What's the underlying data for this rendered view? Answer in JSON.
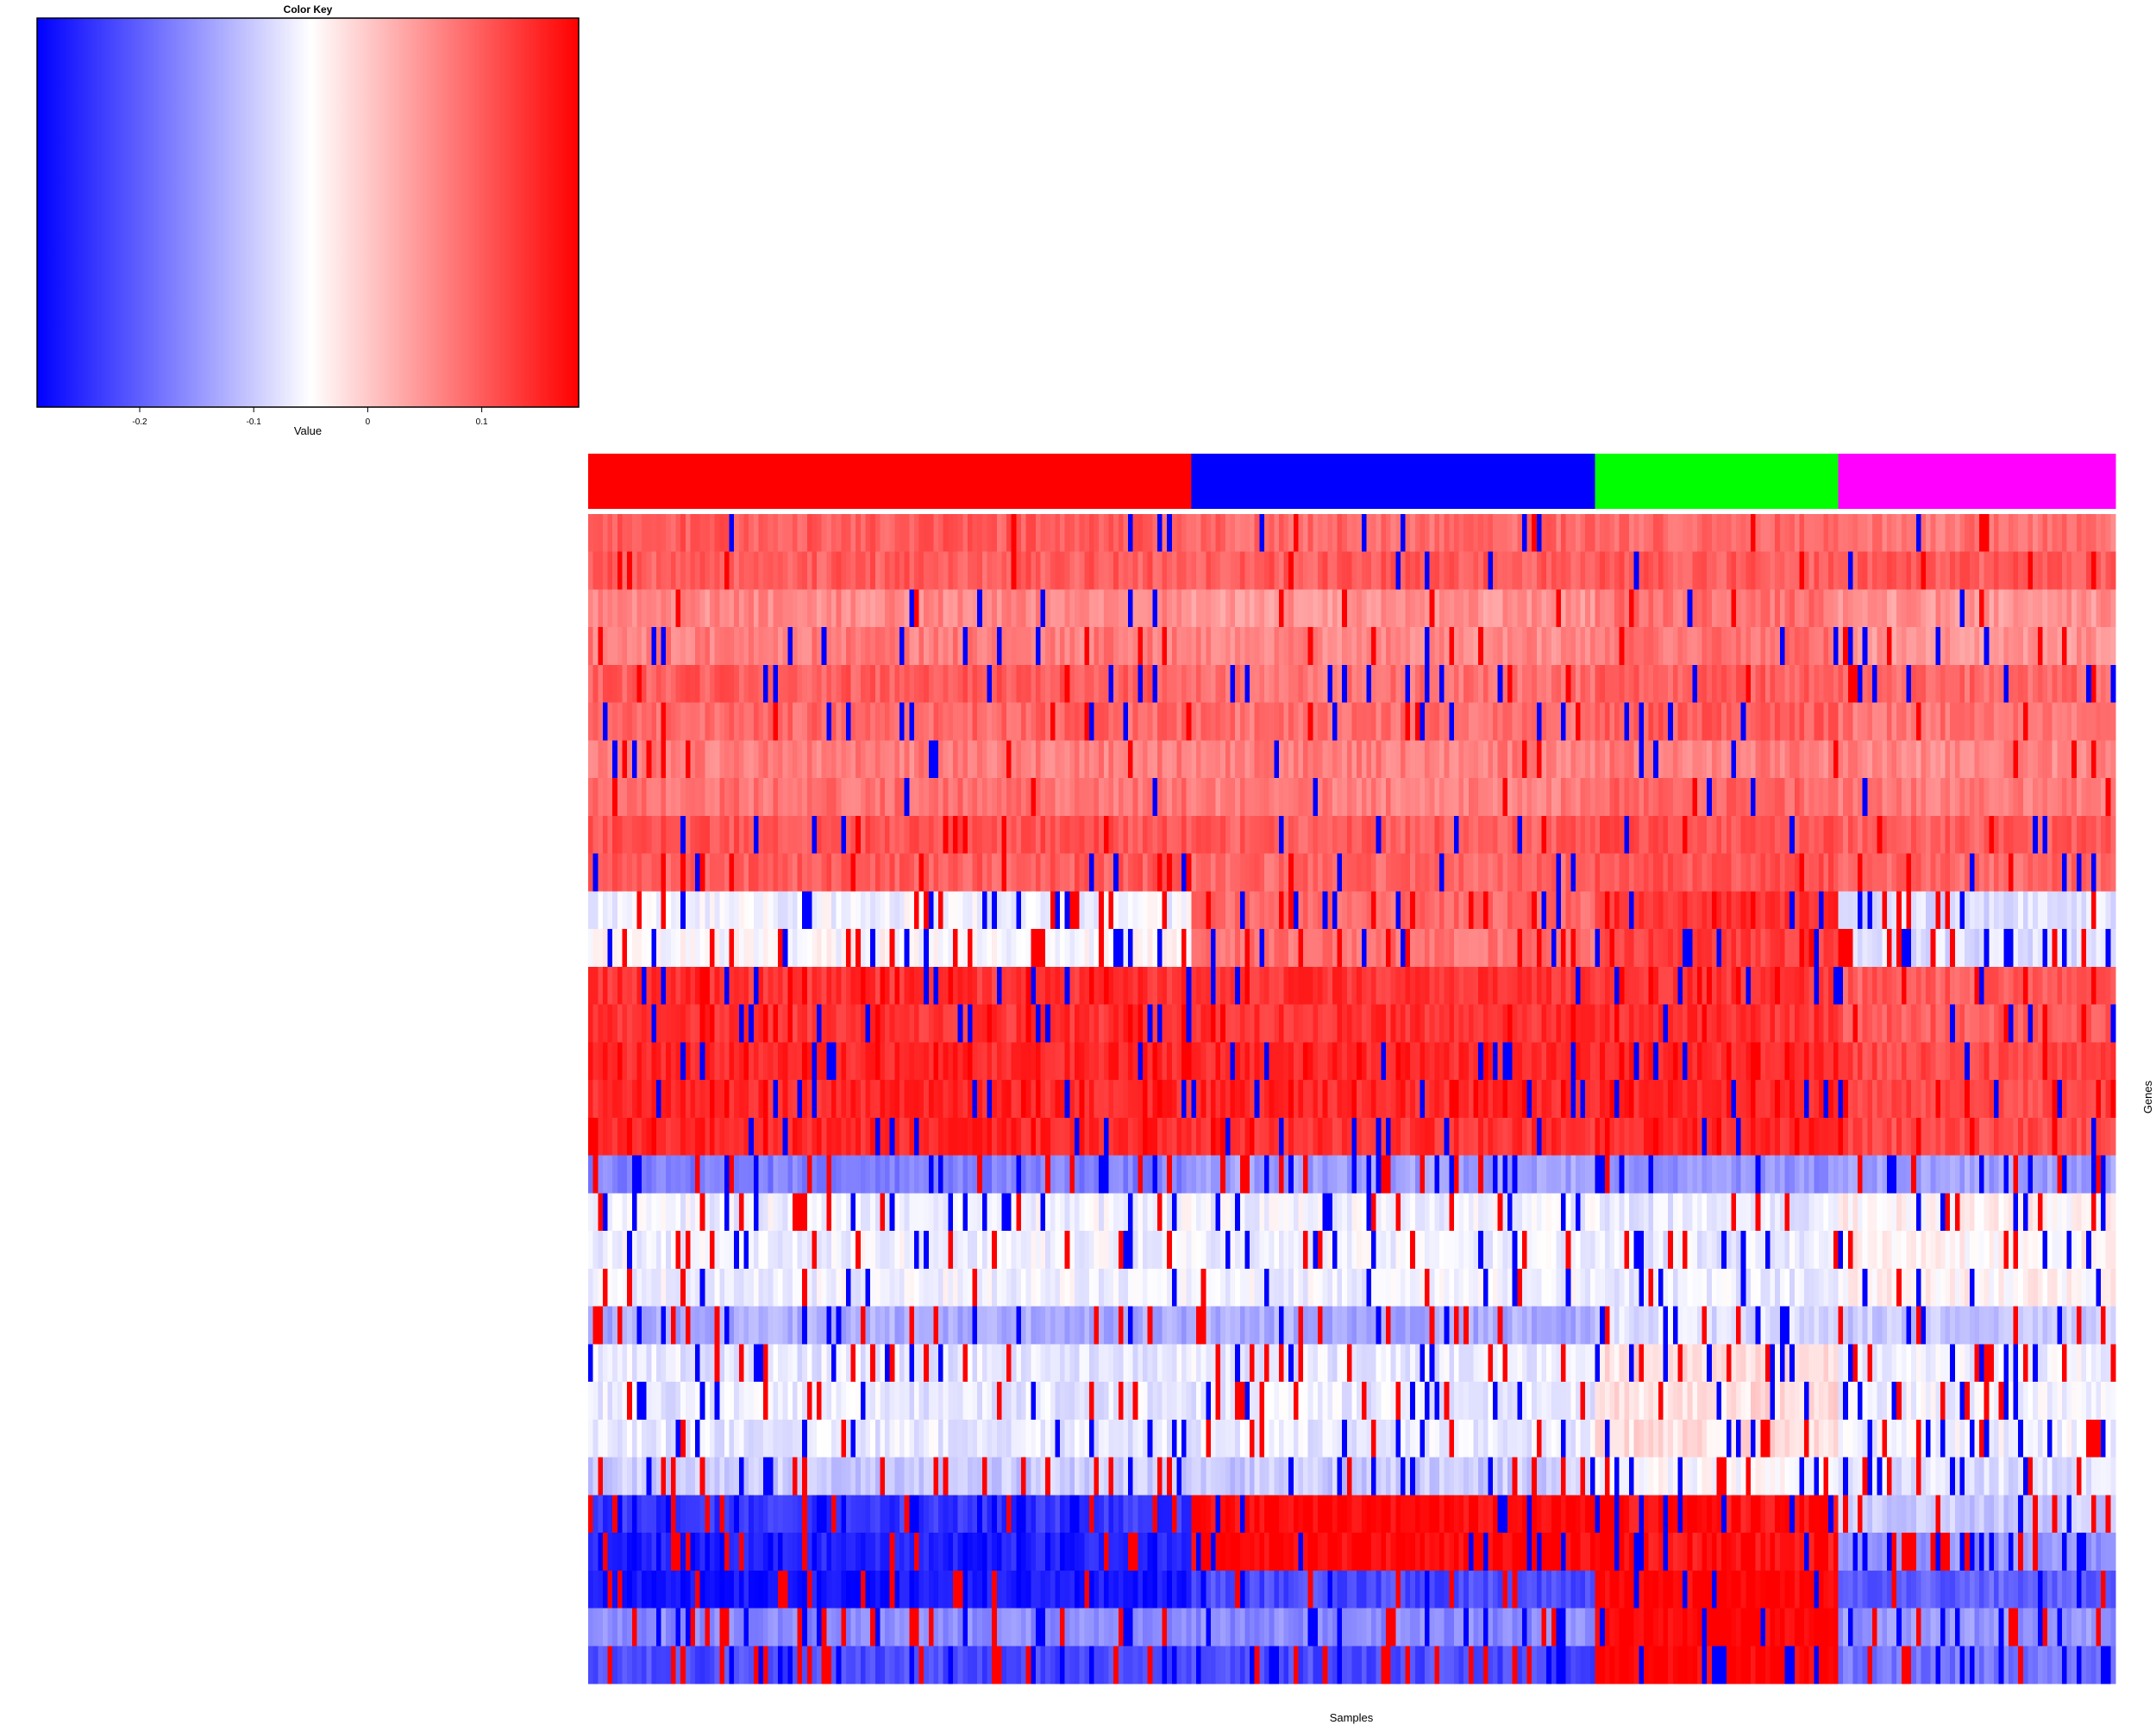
{
  "chart_data": {
    "type": "heatmap",
    "color_key": {
      "title": "Color Key",
      "xlabel": "Value",
      "range": [
        -0.29,
        0.185
      ],
      "ticks": [
        -0.2,
        -0.1,
        0,
        0.1
      ],
      "tick_labels": [
        "-0.2",
        "-0.1",
        "0",
        "0.1"
      ],
      "low_color": "#0000ff",
      "mid_color": "#ffffff",
      "high_color": "#ff0000",
      "mid_value": -0.05
    },
    "xlabel": "Samples",
    "ylabel": "Genes",
    "column_groups": [
      {
        "color": "#ff0000",
        "count": 124
      },
      {
        "color": "#0000ff",
        "count": 83
      },
      {
        "color": "#00ff00",
        "count": 50
      },
      {
        "color": "#ff00ff",
        "count": 57
      }
    ],
    "n_rows": 31,
    "row_base_values": [
      [
        0.1,
        0.09,
        0.09,
        0.08
      ],
      [
        0.1,
        0.1,
        0.1,
        0.1
      ],
      [
        0.06,
        0.05,
        0.08,
        0.05
      ],
      [
        0.07,
        0.06,
        0.08,
        0.05
      ],
      [
        0.1,
        0.08,
        0.1,
        0.09
      ],
      [
        0.09,
        0.08,
        0.1,
        0.08
      ],
      [
        0.07,
        0.07,
        0.07,
        0.06
      ],
      [
        0.08,
        0.07,
        0.09,
        0.07
      ],
      [
        0.11,
        0.1,
        0.11,
        0.1
      ],
      [
        0.1,
        0.09,
        0.11,
        0.09
      ],
      [
        -0.06,
        0.09,
        0.14,
        -0.08
      ],
      [
        -0.05,
        0.08,
        0.13,
        -0.08
      ],
      [
        0.14,
        0.14,
        0.14,
        0.1
      ],
      [
        0.14,
        0.14,
        0.14,
        0.1
      ],
      [
        0.15,
        0.15,
        0.15,
        0.12
      ],
      [
        0.15,
        0.15,
        0.15,
        0.12
      ],
      [
        0.15,
        0.14,
        0.15,
        0.12
      ],
      [
        -0.17,
        -0.14,
        -0.15,
        -0.14
      ],
      [
        -0.06,
        -0.06,
        -0.07,
        -0.04
      ],
      [
        -0.06,
        -0.06,
        -0.07,
        -0.04
      ],
      [
        -0.06,
        -0.06,
        -0.07,
        -0.04
      ],
      [
        -0.13,
        -0.13,
        -0.08,
        -0.1
      ],
      [
        -0.07,
        -0.07,
        -0.02,
        -0.06
      ],
      [
        -0.07,
        -0.07,
        -0.02,
        -0.06
      ],
      [
        -0.07,
        -0.07,
        -0.02,
        -0.06
      ],
      [
        -0.1,
        -0.1,
        -0.05,
        -0.08
      ],
      [
        -0.24,
        0.18,
        0.17,
        -0.1
      ],
      [
        -0.26,
        0.18,
        0.17,
        -0.15
      ],
      [
        -0.27,
        -0.22,
        0.185,
        -0.2
      ],
      [
        -0.16,
        -0.16,
        0.185,
        -0.15
      ],
      [
        -0.22,
        -0.22,
        0.185,
        -0.18
      ]
    ],
    "row_outlier_rates": [
      0.05,
      0.05,
      0.08,
      0.08,
      0.08,
      0.08,
      0.05,
      0.05,
      0.08,
      0.08,
      0.18,
      0.18,
      0.12,
      0.12,
      0.14,
      0.14,
      0.12,
      0.2,
      0.14,
      0.14,
      0.1,
      0.16,
      0.16,
      0.16,
      0.16,
      0.16,
      0.22,
      0.22,
      0.18,
      0.18,
      0.22
    ]
  }
}
